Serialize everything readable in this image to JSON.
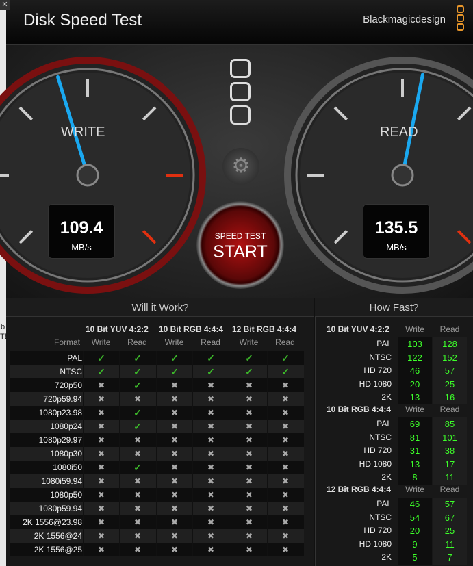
{
  "window": {
    "title": "Disk Speed Test",
    "brand": "Blackmagicdesign"
  },
  "desktop": {
    "text_b": "b",
    "text_tb": "TB"
  },
  "gauges": {
    "write": {
      "label": "WRITE",
      "value": "109.4",
      "unit": "MB/s",
      "needle_mbps": 109.4
    },
    "read": {
      "label": "READ",
      "value": "135.5",
      "unit": "MB/s",
      "needle_mbps": 135.5
    },
    "start": {
      "line1": "SPEED TEST",
      "line2": "START"
    }
  },
  "will_it_work": {
    "title": "Will it Work?",
    "format_label": "Format",
    "groups": [
      "10 Bit YUV 4:2:2",
      "10 Bit RGB 4:4:4",
      "12 Bit RGB 4:4:4"
    ],
    "subcols": [
      "Write",
      "Read",
      "Write",
      "Read",
      "Write",
      "Read"
    ],
    "rows": [
      {
        "format": "PAL",
        "ok": [
          1,
          1,
          1,
          1,
          1,
          1
        ]
      },
      {
        "format": "NTSC",
        "ok": [
          1,
          1,
          1,
          1,
          1,
          1
        ]
      },
      {
        "format": "720p50",
        "ok": [
          0,
          1,
          0,
          0,
          0,
          0
        ]
      },
      {
        "format": "720p59.94",
        "ok": [
          0,
          0,
          0,
          0,
          0,
          0
        ]
      },
      {
        "format": "1080p23.98",
        "ok": [
          0,
          1,
          0,
          0,
          0,
          0
        ]
      },
      {
        "format": "1080p24",
        "ok": [
          0,
          1,
          0,
          0,
          0,
          0
        ]
      },
      {
        "format": "1080p29.97",
        "ok": [
          0,
          0,
          0,
          0,
          0,
          0
        ]
      },
      {
        "format": "1080p30",
        "ok": [
          0,
          0,
          0,
          0,
          0,
          0
        ]
      },
      {
        "format": "1080i50",
        "ok": [
          0,
          1,
          0,
          0,
          0,
          0
        ]
      },
      {
        "format": "1080i59.94",
        "ok": [
          0,
          0,
          0,
          0,
          0,
          0
        ]
      },
      {
        "format": "1080p50",
        "ok": [
          0,
          0,
          0,
          0,
          0,
          0
        ]
      },
      {
        "format": "1080p59.94",
        "ok": [
          0,
          0,
          0,
          0,
          0,
          0
        ]
      },
      {
        "format": "2K 1556@23.98",
        "ok": [
          0,
          0,
          0,
          0,
          0,
          0
        ]
      },
      {
        "format": "2K 1556@24",
        "ok": [
          0,
          0,
          0,
          0,
          0,
          0
        ]
      },
      {
        "format": "2K 1556@25",
        "ok": [
          0,
          0,
          0,
          0,
          0,
          0
        ]
      }
    ]
  },
  "how_fast": {
    "title": "How Fast?",
    "write_label": "Write",
    "read_label": "Read",
    "sections": [
      {
        "name": "10 Bit YUV 4:2:2",
        "rows": [
          [
            "PAL",
            "103",
            "128"
          ],
          [
            "NTSC",
            "122",
            "152"
          ],
          [
            "HD 720",
            "46",
            "57"
          ],
          [
            "HD 1080",
            "20",
            "25"
          ],
          [
            "2K",
            "13",
            "16"
          ]
        ]
      },
      {
        "name": "10 Bit RGB 4:4:4",
        "rows": [
          [
            "PAL",
            "69",
            "85"
          ],
          [
            "NTSC",
            "81",
            "101"
          ],
          [
            "HD 720",
            "31",
            "38"
          ],
          [
            "HD 1080",
            "13",
            "17"
          ],
          [
            "2K",
            "8",
            "11"
          ]
        ]
      },
      {
        "name": "12 Bit RGB 4:4:4",
        "rows": [
          [
            "PAL",
            "46",
            "57"
          ],
          [
            "NTSC",
            "54",
            "67"
          ],
          [
            "HD 720",
            "20",
            "25"
          ],
          [
            "HD 1080",
            "9",
            "11"
          ],
          [
            "2K",
            "5",
            "7"
          ]
        ]
      }
    ]
  },
  "colors": {
    "accent_needle": "#1aa8f0",
    "ok": "#3cb62a",
    "value_green": "#3dff2a",
    "logo": "#e8962a"
  }
}
